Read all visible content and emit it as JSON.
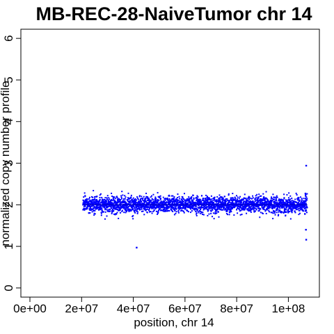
{
  "chart_data": {
    "type": "scatter",
    "title": "MB-REC-28-NaiveTumor chr 14",
    "xlabel": "position, chr 14",
    "ylabel": "normalized copy number profile",
    "xlim": [
      -3500000,
      112000000
    ],
    "ylim": [
      -0.22,
      6.22
    ],
    "x_ticks": [
      {
        "value": 0,
        "label": "0e+00"
      },
      {
        "value": 20000000,
        "label": "2e+07"
      },
      {
        "value": 40000000,
        "label": "4e+07"
      },
      {
        "value": 60000000,
        "label": "6e+07"
      },
      {
        "value": 80000000,
        "label": "8e+07"
      },
      {
        "value": 100000000,
        "label": "1e+08"
      }
    ],
    "y_ticks": [
      {
        "value": 0,
        "label": "0"
      },
      {
        "value": 1,
        "label": "1"
      },
      {
        "value": 2,
        "label": "2"
      },
      {
        "value": 3,
        "label": "3"
      },
      {
        "value": 4,
        "label": "4"
      },
      {
        "value": 5,
        "label": "5"
      },
      {
        "value": 6,
        "label": "6"
      }
    ],
    "grid": false,
    "point_color": "#0000ff",
    "segment_color": "#0000cc",
    "series": [
      {
        "x_range": [
          20500000,
          107300000
        ],
        "mean": 2.0,
        "spread": 0.1,
        "n_points": 2800,
        "points": [
          {
            "x": 41300000,
            "y": 0.97
          },
          {
            "x": 106900000,
            "y": 2.94
          },
          {
            "x": 106800000,
            "y": 1.4
          },
          {
            "x": 106900000,
            "y": 1.16
          },
          {
            "x": 106600000,
            "y": 2.27
          },
          {
            "x": 106400000,
            "y": 1.78
          },
          {
            "x": 106700000,
            "y": 2.24
          }
        ]
      }
    ],
    "segments": [
      {
        "x_start": 20500000,
        "x_end": 107300000,
        "y": 2.0
      }
    ]
  }
}
